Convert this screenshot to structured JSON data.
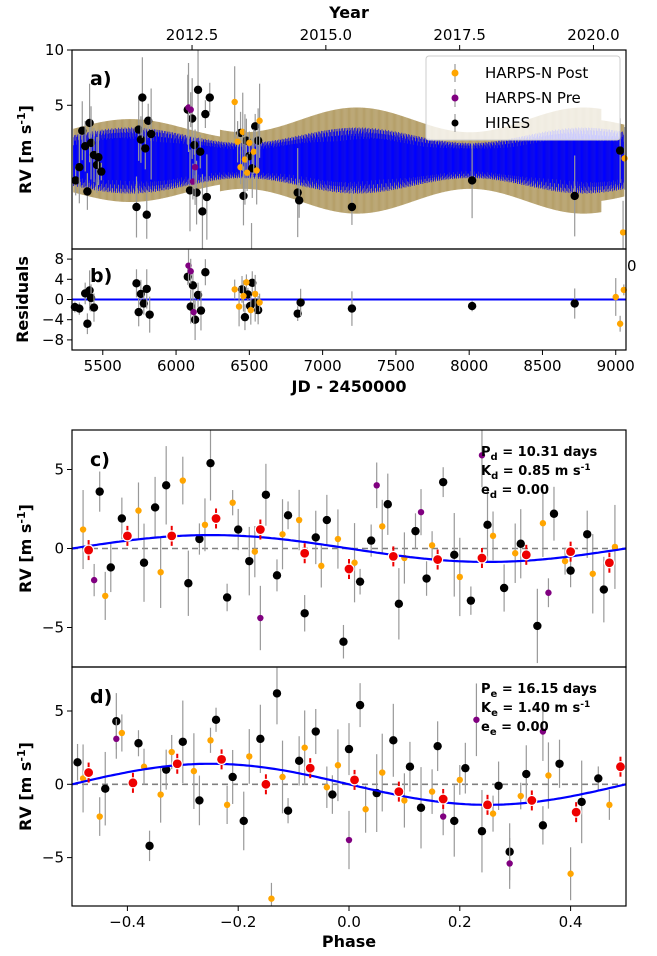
{
  "colors": {
    "harps_post": "#ffa500",
    "harps_pre": "#800080",
    "hires": "#000000",
    "model": "#0000ff",
    "model_band": "#8b6914",
    "errorbar": "#999999",
    "binned": "#ee0000",
    "zero_line": "#808080"
  },
  "chart_data": [
    {
      "panel": "a)",
      "type": "scatter",
      "ylabel_main": "RV [m s",
      "ylabel_sup": "-1",
      "ylabel_end": "]",
      "top_axis_title": "Year",
      "top_ticks": [
        "2012.5",
        "2015.0",
        "2017.5",
        "2020.0"
      ],
      "top_tick_jd": [
        6109,
        7022,
        7935,
        8848
      ],
      "xlim": [
        5290,
        9070
      ],
      "ylim": [
        -8,
        10
      ],
      "yticks_shown": [
        5,
        10
      ],
      "legend": [
        "HARPS-N Post",
        "HARPS-N Pre",
        "HIRES"
      ],
      "legend_position": "top-right",
      "model_jd_range": [
        5300,
        9060
      ],
      "model_amplitude_min": 1.6,
      "model_amplitude_max": 3.0,
      "series": [
        {
          "name": "HIRES",
          "color_key": "hires",
          "x": [
            5315,
            5340,
            5360,
            5380,
            5395,
            5410,
            5420,
            5440,
            5460,
            5470,
            5490,
            5730,
            5745,
            5760,
            5770,
            5790,
            5800,
            5810,
            5830,
            6080,
            6095,
            6110,
            6125,
            6140,
            6150,
            6165,
            6180,
            6200,
            6210,
            6230,
            6440,
            6460,
            6480,
            6500,
            6520,
            6540,
            6560,
            6830,
            6840,
            7200,
            8020,
            8720,
            9030
          ],
          "y": [
            -1.8,
            -0.6,
            2.7,
            1.3,
            -2.8,
            3.4,
            1.6,
            0.5,
            -0.4,
            0.3,
            -1.0,
            -4.2,
            2.8,
            1.9,
            5.7,
            1.1,
            -4.9,
            3.6,
            2.4,
            4.6,
            -2.7,
            3.8,
            1.4,
            -2.9,
            6.4,
            0.8,
            -4.6,
            4.2,
            -3.3,
            5.7,
            2.5,
            -3.2,
            1.8,
            0.4,
            -0.7,
            3.1,
            1.8,
            -2.9,
            -3.6,
            -4.2,
            -1.8,
            -3.2,
            0.9
          ]
        },
        {
          "name": "HARPS-N Pre",
          "color_key": "harps_pre",
          "x": [
            6085,
            6100,
            6115,
            6130
          ],
          "y": [
            4.8,
            4.6,
            -1.9,
            -0.6
          ]
        },
        {
          "name": "HARPS-N Post",
          "color_key": "harps_post",
          "x": [
            6400,
            6420,
            6440,
            6455,
            6470,
            6485,
            6500,
            6515,
            6530,
            6550,
            6570,
            9050,
            9060
          ],
          "y": [
            5.3,
            1.7,
            -0.6,
            2.6,
            0.1,
            -1.1,
            1.6,
            -8.2,
            0.8,
            -0.9,
            3.6,
            -6.5,
            0.2
          ]
        }
      ]
    },
    {
      "panel": "b)",
      "type": "scatter",
      "ylabel": "Residuals",
      "xlabel": "JD - 2450000",
      "xlim": [
        5290,
        9070
      ],
      "ylim": [
        -10,
        10
      ],
      "yticks": [
        -8,
        -4,
        0,
        4,
        8
      ],
      "xticks": [
        5500,
        6000,
        6500,
        7000,
        7500,
        8000,
        8500,
        9000
      ],
      "overflow_tick_label": "0",
      "series": [
        {
          "name": "HIRES",
          "color_key": "hires",
          "x": [
            5310,
            5340,
            5380,
            5395,
            5410,
            5420,
            5440,
            5730,
            5745,
            5760,
            5780,
            5800,
            5820,
            6080,
            6100,
            6115,
            6130,
            6150,
            6170,
            6200,
            6450,
            6470,
            6490,
            6505,
            6520,
            6540,
            6560,
            6830,
            6850,
            7200,
            8020,
            8720
          ],
          "y": [
            -1.5,
            -1.8,
            1.2,
            -4.8,
            1.8,
            0.3,
            -1.6,
            3.2,
            -2.5,
            1.1,
            -0.8,
            2.1,
            -3.0,
            4.5,
            -1.4,
            2.8,
            -4.0,
            0.9,
            -2.2,
            5.4,
            2.0,
            -3.5,
            1.0,
            -1.3,
            3.3,
            -0.6,
            -2.1,
            -2.8,
            -0.6,
            -1.8,
            -1.3,
            -0.8
          ]
        },
        {
          "name": "HARPS-N Pre",
          "color_key": "harps_pre",
          "x": [
            6085,
            6100,
            6120
          ],
          "y": [
            6.7,
            5.6,
            -2.5
          ]
        },
        {
          "name": "HARPS-N Post",
          "color_key": "harps_post",
          "x": [
            6400,
            6430,
            6460,
            6480,
            6510,
            6540,
            6570,
            9000,
            9030,
            9055
          ],
          "y": [
            2.0,
            -1.4,
            0.7,
            3.4,
            -2.1,
            1.1,
            -0.6,
            0.5,
            -4.8,
            1.9
          ]
        }
      ]
    },
    {
      "panel": "c)",
      "type": "scatter",
      "ylabel_main": "RV [m s",
      "ylabel_sup": "-1",
      "ylabel_end": "]",
      "xlim": [
        -0.5,
        0.5
      ],
      "ylim": [
        -7.5,
        7.5
      ],
      "yticks": [
        -5,
        0,
        5
      ],
      "params": [
        {
          "prefix": "P",
          "sub": "d",
          "value": " = 10.31 days"
        },
        {
          "prefix": "K",
          "sub": "d",
          "value": " = 0.85 m s",
          "unit_sup": "-1"
        },
        {
          "prefix": "e",
          "sub": "d",
          "value": " = 0.00"
        }
      ],
      "model": {
        "K": 0.85,
        "peak_phase": -0.25
      },
      "binned": {
        "x": [
          -0.47,
          -0.4,
          -0.32,
          -0.24,
          -0.16,
          -0.08,
          0.0,
          0.08,
          0.16,
          0.24,
          0.32,
          0.4,
          0.47
        ],
        "y": [
          -0.1,
          0.8,
          0.8,
          1.9,
          1.2,
          -0.3,
          -1.3,
          -0.5,
          -0.7,
          -0.6,
          -0.4,
          -0.2,
          -0.9
        ]
      },
      "series": [
        {
          "name": "HIRES",
          "color_key": "hires",
          "x": [
            -0.45,
            -0.43,
            -0.41,
            -0.37,
            -0.35,
            -0.33,
            -0.29,
            -0.27,
            -0.25,
            -0.22,
            -0.2,
            -0.18,
            -0.15,
            -0.13,
            -0.11,
            -0.08,
            -0.06,
            -0.04,
            -0.01,
            0.02,
            0.04,
            0.07,
            0.09,
            0.12,
            0.14,
            0.17,
            0.19,
            0.22,
            0.25,
            0.28,
            0.31,
            0.34,
            0.37,
            0.4,
            0.43,
            0.46
          ],
          "y": [
            3.6,
            -1.2,
            1.9,
            -0.9,
            2.6,
            4.0,
            -2.2,
            0.6,
            5.4,
            -3.1,
            1.2,
            -0.8,
            3.4,
            -1.7,
            2.1,
            -4.1,
            0.7,
            1.8,
            -5.9,
            -2.1,
            0.5,
            2.8,
            -3.5,
            1.1,
            -1.9,
            4.2,
            -0.4,
            -3.3,
            1.5,
            -2.5,
            0.3,
            -4.9,
            2.2,
            -1.4,
            0.9,
            -2.6
          ]
        },
        {
          "name": "HARPS-N Pre",
          "color_key": "harps_pre",
          "x": [
            -0.46,
            -0.16,
            0.05,
            0.13,
            0.24,
            0.36
          ],
          "y": [
            -2.0,
            -4.4,
            4.0,
            2.3,
            5.9,
            -2.8
          ]
        },
        {
          "name": "HARPS-N Post",
          "color_key": "harps_post",
          "x": [
            -0.48,
            -0.44,
            -0.38,
            -0.34,
            -0.3,
            -0.26,
            -0.21,
            -0.17,
            -0.12,
            -0.09,
            -0.05,
            -0.02,
            0.01,
            0.06,
            0.1,
            0.15,
            0.2,
            0.26,
            0.3,
            0.35,
            0.39,
            0.44,
            0.48
          ],
          "y": [
            1.2,
            -3.0,
            2.4,
            -1.5,
            4.3,
            1.5,
            2.9,
            -0.2,
            0.9,
            1.8,
            -1.1,
            0.6,
            -0.9,
            1.4,
            -0.6,
            0.2,
            -1.8,
            0.8,
            -0.3,
            1.6,
            -0.8,
            -1.6,
            0.1
          ]
        }
      ]
    },
    {
      "panel": "d)",
      "type": "scatter",
      "ylabel_main": "RV [m s",
      "ylabel_sup": "-1",
      "ylabel_end": "]",
      "xlabel": "Phase",
      "xlim": [
        -0.5,
        0.5
      ],
      "ylim": [
        -8.3,
        8.0
      ],
      "yticks": [
        -5,
        0,
        5
      ],
      "xticks": [
        -0.4,
        -0.2,
        0.0,
        0.2,
        0.4
      ],
      "xtick_labels": [
        "−0.4",
        "−0.2",
        "0.0",
        "0.2",
        "0.4"
      ],
      "params": [
        {
          "prefix": "P",
          "sub": "e",
          "value": " = 16.15 days"
        },
        {
          "prefix": "K",
          "sub": "e",
          "value": " = 1.40 m s",
          "unit_sup": "-1"
        },
        {
          "prefix": "e",
          "sub": "e",
          "value": " = 0.00"
        }
      ],
      "model": {
        "K": 1.4,
        "peak_phase": -0.25
      },
      "binned": {
        "x": [
          -0.47,
          -0.39,
          -0.31,
          -0.23,
          -0.15,
          -0.07,
          0.01,
          0.09,
          0.17,
          0.25,
          0.33,
          0.41,
          0.49
        ],
        "y": [
          0.8,
          0.1,
          1.4,
          1.7,
          0.0,
          1.1,
          0.3,
          -0.5,
          -1.0,
          -1.4,
          -1.1,
          -1.9,
          1.2
        ]
      },
      "series": [
        {
          "name": "HIRES",
          "color_key": "hires",
          "x": [
            -0.49,
            -0.44,
            -0.42,
            -0.38,
            -0.36,
            -0.33,
            -0.3,
            -0.27,
            -0.24,
            -0.21,
            -0.19,
            -0.16,
            -0.13,
            -0.11,
            -0.09,
            -0.06,
            -0.03,
            0.0,
            0.02,
            0.05,
            0.08,
            0.11,
            0.13,
            0.16,
            0.19,
            0.21,
            0.24,
            0.27,
            0.29,
            0.32,
            0.35,
            0.38,
            0.42,
            0.45
          ],
          "y": [
            1.5,
            -0.3,
            4.3,
            2.8,
            -4.2,
            1.0,
            2.9,
            -1.1,
            4.4,
            0.5,
            -2.5,
            3.1,
            6.2,
            -1.8,
            1.6,
            3.6,
            -0.7,
            2.4,
            5.4,
            -0.6,
            3.0,
            1.2,
            -1.6,
            2.6,
            -2.5,
            1.1,
            -3.2,
            -0.1,
            -4.6,
            0.7,
            -2.8,
            1.4,
            -1.2,
            0.4
          ]
        },
        {
          "name": "HARPS-N Pre",
          "color_key": "harps_pre",
          "x": [
            -0.42,
            0.0,
            0.17,
            0.23,
            0.29,
            0.35
          ],
          "y": [
            3.1,
            -3.8,
            -2.2,
            4.4,
            -5.4,
            3.6
          ]
        },
        {
          "name": "HARPS-N Post",
          "color_key": "harps_post",
          "x": [
            -0.48,
            -0.45,
            -0.41,
            -0.37,
            -0.34,
            -0.32,
            -0.28,
            -0.25,
            -0.22,
            -0.18,
            -0.14,
            -0.12,
            -0.08,
            -0.04,
            -0.02,
            0.03,
            0.06,
            0.1,
            0.15,
            0.2,
            0.26,
            0.31,
            0.36,
            0.4,
            0.47
          ],
          "y": [
            0.4,
            -2.2,
            3.5,
            1.2,
            -0.7,
            2.2,
            0.9,
            3.0,
            -1.4,
            1.9,
            -7.8,
            0.5,
            2.5,
            -0.2,
            1.3,
            -1.7,
            0.8,
            -1.1,
            -0.5,
            0.3,
            -2.0,
            -0.8,
            0.6,
            -6.1,
            -1.4
          ]
        }
      ]
    }
  ],
  "panel_a_legend_items": [
    {
      "label": "HARPS-N Post",
      "color_key": "harps_post"
    },
    {
      "label": "HARPS-N Pre",
      "color_key": "harps_pre"
    },
    {
      "label": "HIRES",
      "color_key": "hires"
    }
  ]
}
